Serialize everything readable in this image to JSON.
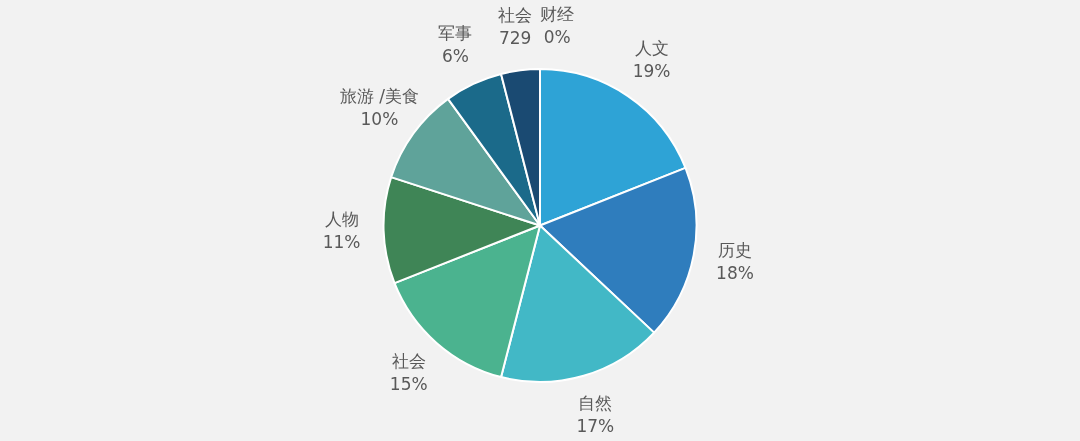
{
  "chart_data": {
    "type": "pie",
    "categories": [
      "人文",
      "历史",
      "自然",
      "社会",
      "人物",
      "旅游 /美食",
      "军事",
      "社会\n729",
      "财经"
    ],
    "values": [
      19,
      18,
      17,
      15,
      11,
      10,
      6,
      4,
      0
    ],
    "value_labels": [
      "19%",
      "18%",
      "17%",
      "15%",
      "11%",
      "10%",
      "6%",
      null,
      "0%"
    ],
    "colors": [
      "#2ea3d6",
      "#2f7dbd",
      "#42b8c6",
      "#4bb38f",
      "#3f8556",
      "#5fa39a",
      "#1b6a8a",
      "#1a4a72",
      "#1a3f66"
    ],
    "legend": false
  }
}
